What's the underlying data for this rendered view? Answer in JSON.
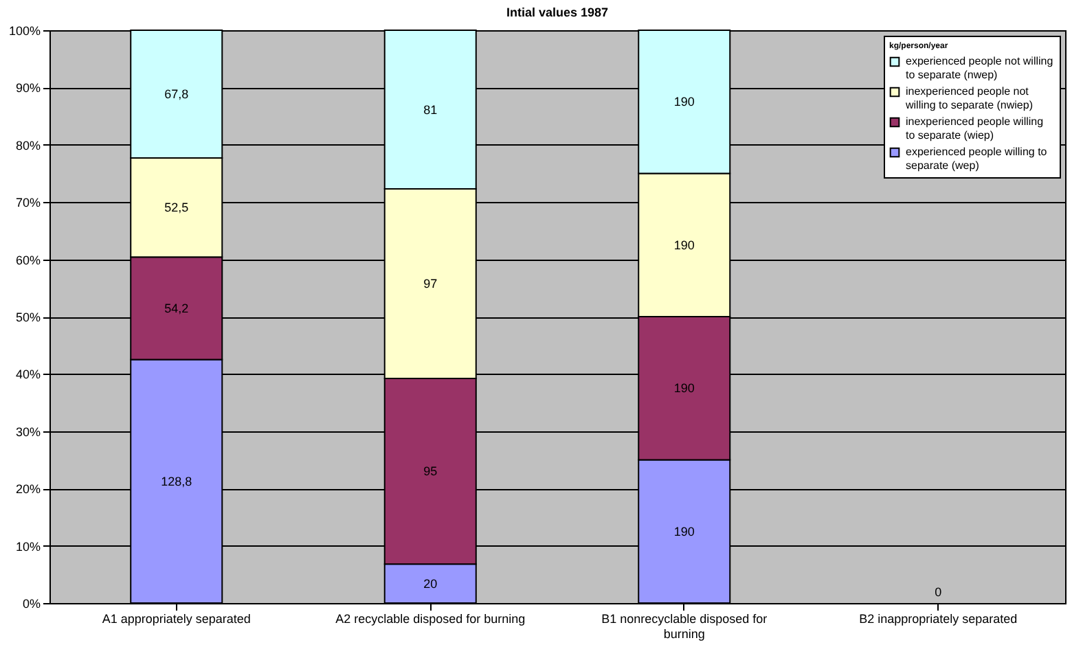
{
  "chart_data": {
    "type": "bar",
    "title": "Intial values 1987",
    "stacked": true,
    "categories": [
      "A1 appropriately separated",
      "A2 recyclable disposed for burning",
      "B1 nonrecyclable disposed for burning",
      "B2 inappropriately separated"
    ],
    "series": [
      {
        "name": "experienced people willing to separate (wep)",
        "color": "#9999ff",
        "values": [
          42.5,
          6.8,
          25,
          0
        ]
      },
      {
        "name": "inexperienced people willing to separate (wiep)",
        "color": "#993366",
        "values": [
          17.9,
          32.4,
          25,
          0
        ]
      },
      {
        "name": "inexperienced people not willing to separate (nwiep)",
        "color": "#ffffcc",
        "values": [
          17.3,
          33.1,
          25,
          0
        ]
      },
      {
        "name": "experienced people not willing to separate (nwep)",
        "color": "#ccffff",
        "values": [
          22.3,
          27.7,
          25,
          0
        ]
      }
    ],
    "annotations": [
      "128,8",
      "54,2",
      "52,5",
      "67,8",
      "20",
      "95",
      "97",
      "81",
      "190",
      "190",
      "190",
      "190",
      "0"
    ],
    "legend_title": "kg/person/year",
    "legend": "top right",
    "ylim": [
      0,
      100
    ],
    "yticks": [
      {
        "value": 0,
        "label": "0%"
      },
      {
        "value": 10,
        "label": "10%"
      },
      {
        "value": 20,
        "label": "20%"
      },
      {
        "value": 30,
        "label": "30%"
      },
      {
        "value": 40,
        "label": "40%"
      },
      {
        "value": 50,
        "label": "50%"
      },
      {
        "value": 60,
        "label": "60%"
      },
      {
        "value": 70,
        "label": "70%"
      },
      {
        "value": 80,
        "label": "80%"
      },
      {
        "value": 90,
        "label": "90%"
      },
      {
        "value": 100,
        "label": "100%"
      }
    ],
    "grid": "y"
  }
}
